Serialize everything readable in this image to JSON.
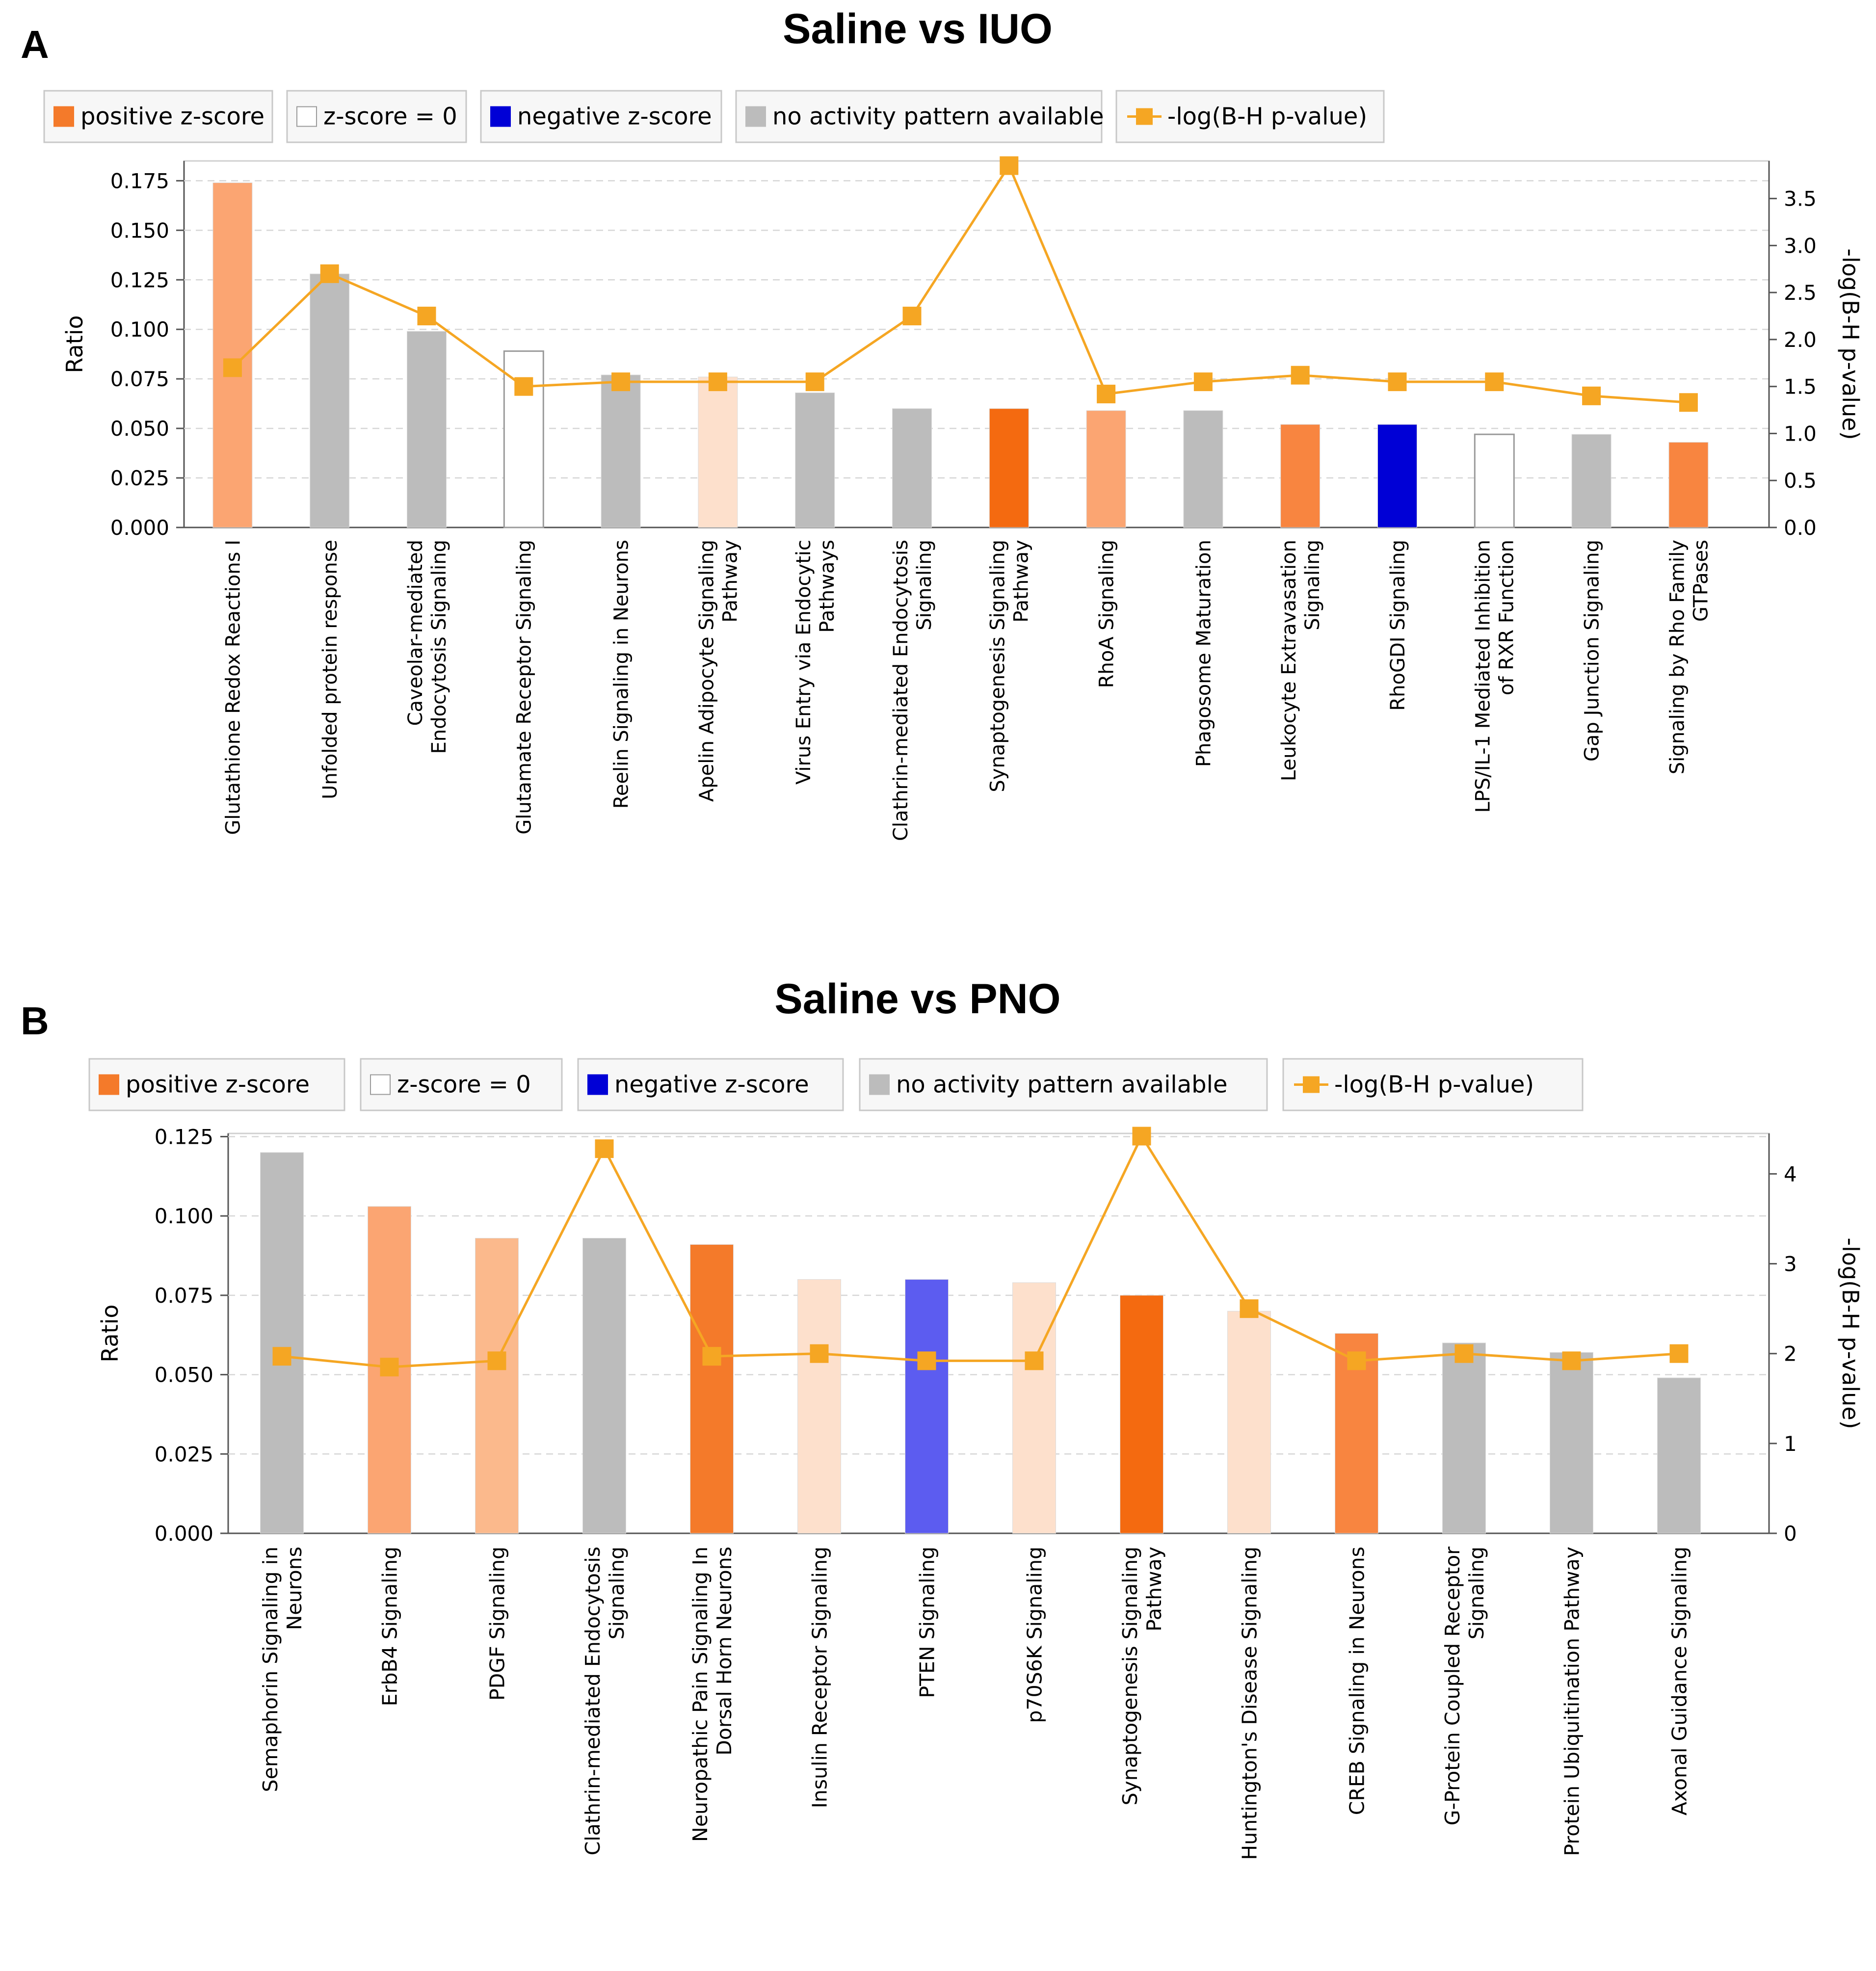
{
  "panels": [
    {
      "panel_label": "A",
      "title": "Saline vs IUO",
      "legend": [
        {
          "label": "positive z-score",
          "swatch": "#f47a2a",
          "kind": "box"
        },
        {
          "label": "z-score = 0",
          "swatch": "#ffffff",
          "kind": "box"
        },
        {
          "label": "negative z-score",
          "swatch": "#0000d6",
          "kind": "box"
        },
        {
          "label": "no activity pattern available",
          "swatch": "#bcbcbc",
          "kind": "box"
        },
        {
          "label": "-log(B-H p-value)",
          "swatch": "#f5a623",
          "kind": "line"
        }
      ],
      "chart_data": {
        "type": "bar",
        "ylabel": "Ratio",
        "y2label": "-log(B-H p-value)",
        "ylim": [
          0,
          0.185
        ],
        "yticks": [
          "0.000",
          "0.025",
          "0.050",
          "0.075",
          "0.100",
          "0.125",
          "0.150",
          "0.175"
        ],
        "y2lim": [
          0,
          3.9
        ],
        "y2ticks": [
          "0.0",
          "0.5",
          "1.0",
          "1.5",
          "2.0",
          "2.5",
          "3.0",
          "3.5"
        ],
        "grid": true,
        "categories": [
          [
            "Glutathione Redox Reactions I"
          ],
          [
            "Unfolded protein response"
          ],
          [
            "Caveolar-mediated",
            "Endocytosis Signaling"
          ],
          [
            "Glutamate Receptor Signaling"
          ],
          [
            "Reelin Signaling in Neurons"
          ],
          [
            "Apelin Adipocyte Signaling",
            "Pathway"
          ],
          [
            "Virus Entry via Endocytic",
            "Pathways"
          ],
          [
            "Clathrin-mediated Endocytosis",
            "Signaling"
          ],
          [
            "Synaptogenesis Signaling",
            "Pathway"
          ],
          [
            "RhoA Signaling"
          ],
          [
            "Phagosome Maturation"
          ],
          [
            "Leukocyte Extravasation",
            "Signaling"
          ],
          [
            "RhoGDI Signaling"
          ],
          [
            "LPS/IL-1 Mediated Inhibition",
            "of RXR Function"
          ],
          [
            "Gap Junction Signaling"
          ],
          [
            "Signaling by Rho Family",
            "GTPases"
          ]
        ],
        "ratio_values": [
          0.174,
          0.128,
          0.099,
          0.089,
          0.077,
          0.076,
          0.068,
          0.06,
          0.06,
          0.059,
          0.059,
          0.052,
          0.052,
          0.047,
          0.047,
          0.043
        ],
        "bar_colors": [
          "#fba572",
          "#bcbcbc",
          "#bcbcbc",
          "#ffffff",
          "#bcbcbc",
          "#fde0cc",
          "#bcbcbc",
          "#bcbcbc",
          "#f46a10",
          "#fba572",
          "#bcbcbc",
          "#f88540",
          "#0000d6",
          "#ffffff",
          "#bcbcbc",
          "#f88540"
        ],
        "line_values": [
          1.7,
          2.7,
          2.25,
          1.5,
          1.55,
          1.55,
          1.55,
          2.25,
          3.85,
          1.42,
          1.55,
          1.62,
          1.55,
          1.55,
          1.4,
          1.33
        ],
        "line_color": "#f5a623"
      }
    },
    {
      "panel_label": "B",
      "title": "Saline vs PNO",
      "legend": [
        {
          "label": "positive z-score",
          "swatch": "#f47a2a",
          "kind": "box"
        },
        {
          "label": "z-score = 0",
          "swatch": "#ffffff",
          "kind": "box"
        },
        {
          "label": "negative z-score",
          "swatch": "#0000d6",
          "kind": "box"
        },
        {
          "label": "no activity pattern available",
          "swatch": "#bcbcbc",
          "kind": "box"
        },
        {
          "label": "-log(B-H p-value)",
          "swatch": "#f5a623",
          "kind": "line"
        }
      ],
      "chart_data": {
        "type": "bar",
        "ylabel": "Ratio",
        "y2label": "-log(B-H p-value)",
        "ylim": [
          0,
          0.126
        ],
        "yticks": [
          "0.000",
          "0.025",
          "0.050",
          "0.075",
          "0.100",
          "0.125"
        ],
        "y2lim": [
          0,
          4.45
        ],
        "y2ticks": [
          "0",
          "1",
          "2",
          "3",
          "4"
        ],
        "grid": true,
        "categories": [
          [
            "Semaphorin Signaling in",
            "Neurons"
          ],
          [
            "ErbB4 Signaling"
          ],
          [
            "PDGF Signaling"
          ],
          [
            "Clathrin-mediated Endocytosis",
            "Signaling"
          ],
          [
            "Neuropathic Pain Signaling In",
            "Dorsal Horn Neurons"
          ],
          [
            "Insulin Receptor Signaling"
          ],
          [
            "PTEN Signaling"
          ],
          [
            "p70S6K Signaling"
          ],
          [
            "Synaptogenesis Signaling",
            "Pathway"
          ],
          [
            "Huntington's Disease Signaling"
          ],
          [
            "CREB Signaling in Neurons"
          ],
          [
            "G-Protein Coupled Receptor",
            "Signaling"
          ],
          [
            "Protein Ubiquitination Pathway"
          ],
          [
            "Axonal Guidance Signaling"
          ]
        ],
        "ratio_values": [
          0.12,
          0.103,
          0.093,
          0.093,
          0.091,
          0.08,
          0.08,
          0.079,
          0.075,
          0.07,
          0.063,
          0.06,
          0.057,
          0.049
        ],
        "bar_colors": [
          "#bcbcbc",
          "#fba572",
          "#fbb98c",
          "#bcbcbc",
          "#f47a2a",
          "#fde0cc",
          "#5c5cf0",
          "#fde0cc",
          "#f46a10",
          "#fde0cc",
          "#f88540",
          "#bcbcbc",
          "#bcbcbc",
          "#bcbcbc"
        ],
        "line_values": [
          1.97,
          1.85,
          1.92,
          4.28,
          1.97,
          2.0,
          1.92,
          1.92,
          4.42,
          2.5,
          1.92,
          2.0,
          1.92,
          2.0
        ],
        "line_color": "#f5a623"
      }
    }
  ]
}
